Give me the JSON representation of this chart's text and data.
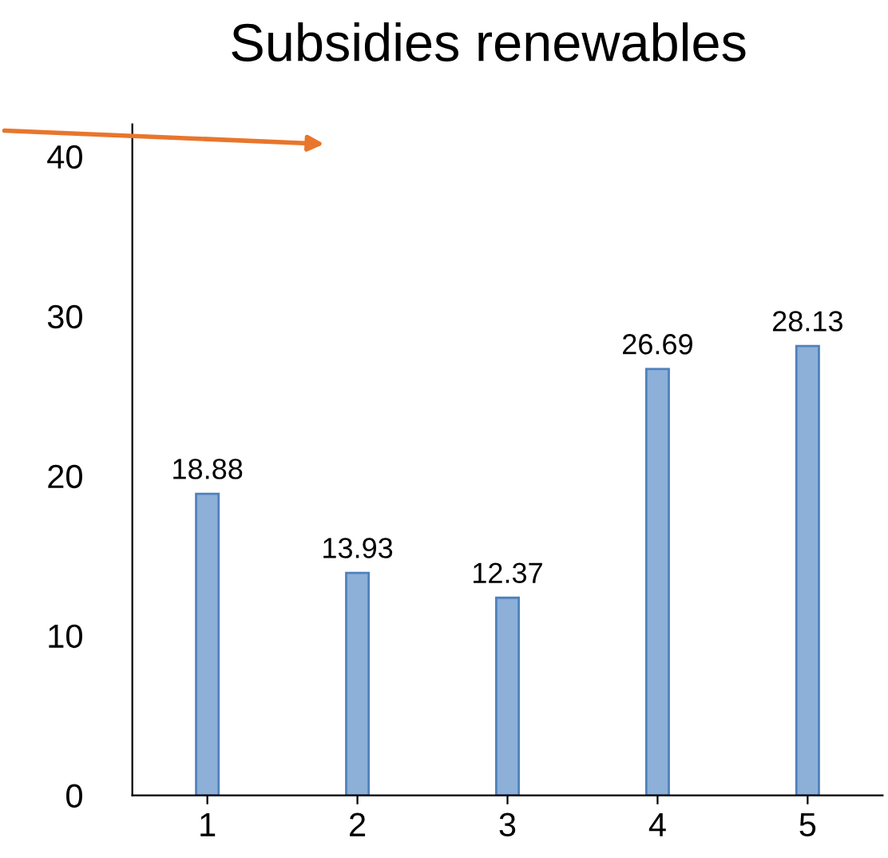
{
  "chart_data": {
    "type": "bar",
    "title": "Subsidies renewables",
    "categories": [
      "1",
      "2",
      "3",
      "4",
      "5"
    ],
    "values": [
      18.88,
      13.93,
      12.37,
      26.69,
      28.13
    ],
    "color": "#8db0d8",
    "ylim": [
      0,
      42
    ],
    "yticks": [
      0,
      10,
      20,
      30,
      40
    ],
    "data_labels": true,
    "grid": false,
    "legend": false
  }
}
